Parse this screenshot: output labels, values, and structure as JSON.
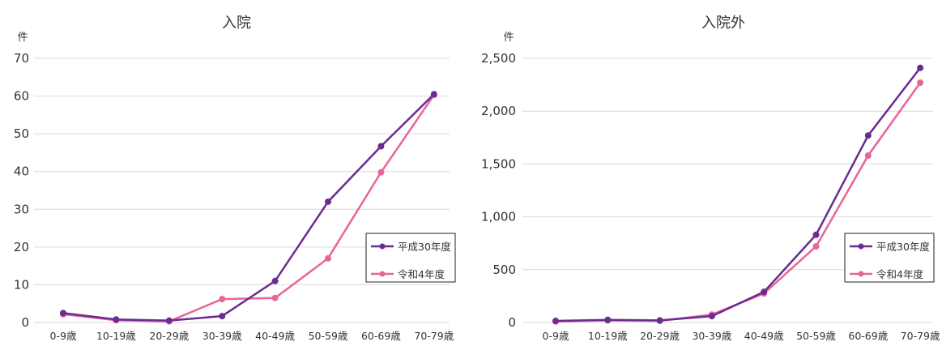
{
  "chart_data": [
    {
      "type": "line",
      "title": "入院",
      "ylabel": "件",
      "ylim": [
        0,
        70
      ],
      "yticks": [
        "0",
        "10",
        "20",
        "30",
        "40",
        "50",
        "60",
        "70"
      ],
      "yticks_values": [
        0,
        10,
        20,
        30,
        40,
        50,
        60,
        70
      ],
      "categories": [
        "0-9歳",
        "10-19歳",
        "20-29歳",
        "30-39歳",
        "40-49歳",
        "50-59歳",
        "60-69歳",
        "70-79歳"
      ],
      "grid": true,
      "legend_position": "right",
      "series": [
        {
          "name": "平成30年度",
          "color": "#6a2c91",
          "values": [
            2.5,
            0.8,
            0.5,
            1.7,
            11,
            32,
            46.7,
            60.5
          ]
        },
        {
          "name": "令和4年度",
          "color": "#e8649a",
          "values": [
            2.2,
            0.6,
            0.3,
            6.2,
            6.5,
            17,
            39.8,
            60.3
          ]
        }
      ]
    },
    {
      "type": "line",
      "title": "入院外",
      "ylabel": "件",
      "ylim": [
        0,
        2500
      ],
      "yticks": [
        "0",
        "500",
        "1,000",
        "1,500",
        "2,000",
        "2,500"
      ],
      "yticks_values": [
        0,
        500,
        1000,
        1500,
        2000,
        2500
      ],
      "categories": [
        "0-9歳",
        "10-19歳",
        "20-29歳",
        "30-39歳",
        "40-49歳",
        "50-59歳",
        "60-69歳",
        "70-79歳"
      ],
      "grid": true,
      "legend_position": "right",
      "series": [
        {
          "name": "平成30年度",
          "color": "#6a2c91",
          "values": [
            15,
            25,
            20,
            60,
            290,
            830,
            1770,
            2410
          ]
        },
        {
          "name": "令和4年度",
          "color": "#e8649a",
          "values": [
            10,
            20,
            15,
            75,
            275,
            720,
            1580,
            2270
          ]
        }
      ]
    }
  ]
}
